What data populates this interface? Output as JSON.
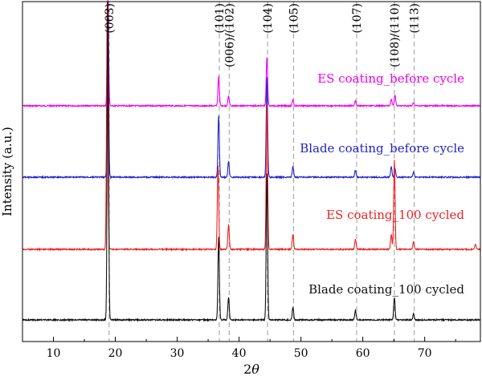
{
  "chart_data": {
    "type": "line",
    "title": "",
    "xlabel": "2θ",
    "ylabel": "Intensity (a.u.)",
    "xlim": [
      5,
      79
    ],
    "xticks": [
      10,
      20,
      30,
      40,
      50,
      60,
      70
    ],
    "y_tick_labels": false,
    "grid": false,
    "legend": "none",
    "reference_lines": [
      {
        "label": "(003)",
        "x": 19.0
      },
      {
        "label": "(101)",
        "x": 36.8
      },
      {
        "label": "(006)/(102)",
        "x": 38.4
      },
      {
        "label": "(104)",
        "x": 44.6
      },
      {
        "label": "(105)",
        "x": 48.8
      },
      {
        "label": "(107)",
        "x": 59.0
      },
      {
        "label": "(108)/(110)",
        "x": 65.1
      },
      {
        "label": "(113)",
        "x": 68.3
      }
    ],
    "series": [
      {
        "name": "ES coating_before cycle",
        "color": "#ee00ee",
        "baseline": 0,
        "peaks": [
          [
            18.8,
            1.0
          ],
          [
            36.7,
            0.27
          ],
          [
            38.3,
            0.09
          ],
          [
            44.5,
            0.45
          ],
          [
            48.7,
            0.06
          ],
          [
            58.8,
            0.05
          ],
          [
            64.6,
            0.06
          ],
          [
            65.2,
            0.1
          ],
          [
            68.2,
            0.03
          ]
        ]
      },
      {
        "name": "Blade coating_before cycle",
        "color": "#2222cc",
        "baseline": 0,
        "peaks": [
          [
            18.8,
            1.0
          ],
          [
            36.7,
            0.36
          ],
          [
            38.3,
            0.09
          ],
          [
            44.5,
            0.58
          ],
          [
            48.7,
            0.06
          ],
          [
            58.8,
            0.04
          ],
          [
            64.6,
            0.06
          ],
          [
            65.2,
            0.05
          ],
          [
            68.2,
            0.03
          ]
        ]
      },
      {
        "name": "ES coating_100 cycled",
        "color": "#ee2222",
        "baseline": 0,
        "peaks": [
          [
            18.7,
            1.0
          ],
          [
            36.6,
            0.34
          ],
          [
            38.3,
            0.1
          ],
          [
            44.5,
            0.59
          ],
          [
            48.7,
            0.06
          ],
          [
            58.8,
            0.04
          ],
          [
            64.6,
            0.06
          ],
          [
            65.1,
            0.36
          ],
          [
            68.2,
            0.03
          ],
          [
            78.2,
            0.02
          ]
        ]
      },
      {
        "name": "Blade coating_100 cycled",
        "color": "#111111",
        "baseline": 0,
        "peaks": [
          [
            18.8,
            1.0
          ],
          [
            36.7,
            0.26
          ],
          [
            38.3,
            0.07
          ],
          [
            44.5,
            0.46
          ],
          [
            48.7,
            0.04
          ],
          [
            58.8,
            0.03
          ],
          [
            65.1,
            0.07
          ],
          [
            68.2,
            0.02
          ]
        ]
      }
    ]
  }
}
